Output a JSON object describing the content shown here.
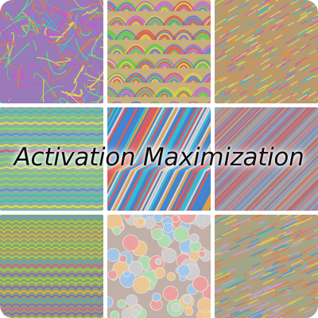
{
  "title": "Activation Maximization",
  "tiles": [
    {
      "name": "tile-fibrous-strands",
      "pattern": "strands",
      "palette": [
        "#d94fd0",
        "#3ab8e0",
        "#e6e640",
        "#5ae07a",
        "#f07a3a"
      ]
    },
    {
      "name": "tile-arch-scales",
      "pattern": "arches",
      "palette": [
        "#e04a4a",
        "#4ad04a",
        "#e8d23a",
        "#4a7ae0",
        "#c060e0"
      ]
    },
    {
      "name": "tile-diagonal-hatch",
      "pattern": "hatch",
      "palette": [
        "#f28a3c",
        "#3cb8d8",
        "#b8e05a",
        "#d05ab8",
        "#e8d070"
      ]
    },
    {
      "name": "tile-zigzag-steps",
      "pattern": "zigzag",
      "palette": [
        "#2ec4b6",
        "#e83f8a",
        "#f0e040",
        "#5a8ae8",
        "#8ae05a"
      ]
    },
    {
      "name": "tile-diagonal-ribbons",
      "pattern": "ribbons",
      "palette": [
        "#3a8ad8",
        "#f2a23a",
        "#2ec4d8",
        "#e85a5a",
        "#d8d8d8"
      ]
    },
    {
      "name": "tile-fine-lines",
      "pattern": "fine",
      "palette": [
        "#c85a5a",
        "#6a9ad8",
        "#d0a080",
        "#8ac0c8",
        "#b87a9a"
      ]
    },
    {
      "name": "tile-wavy-layers",
      "pattern": "waves",
      "palette": [
        "#a6d84a",
        "#e84ab0",
        "#4aa8e8",
        "#e8b84a",
        "#8a5ad8"
      ]
    },
    {
      "name": "tile-bubble-cells",
      "pattern": "bubbles",
      "palette": [
        "#f0a0a0",
        "#a0c8f0",
        "#d0d0d0",
        "#f0c890",
        "#b0e0b0"
      ]
    },
    {
      "name": "tile-diagonal-strokes",
      "pattern": "strokes",
      "palette": [
        "#e8c84a",
        "#4a9ad8",
        "#e87a4a",
        "#6ac0a0",
        "#c0a0e0"
      ]
    }
  ]
}
